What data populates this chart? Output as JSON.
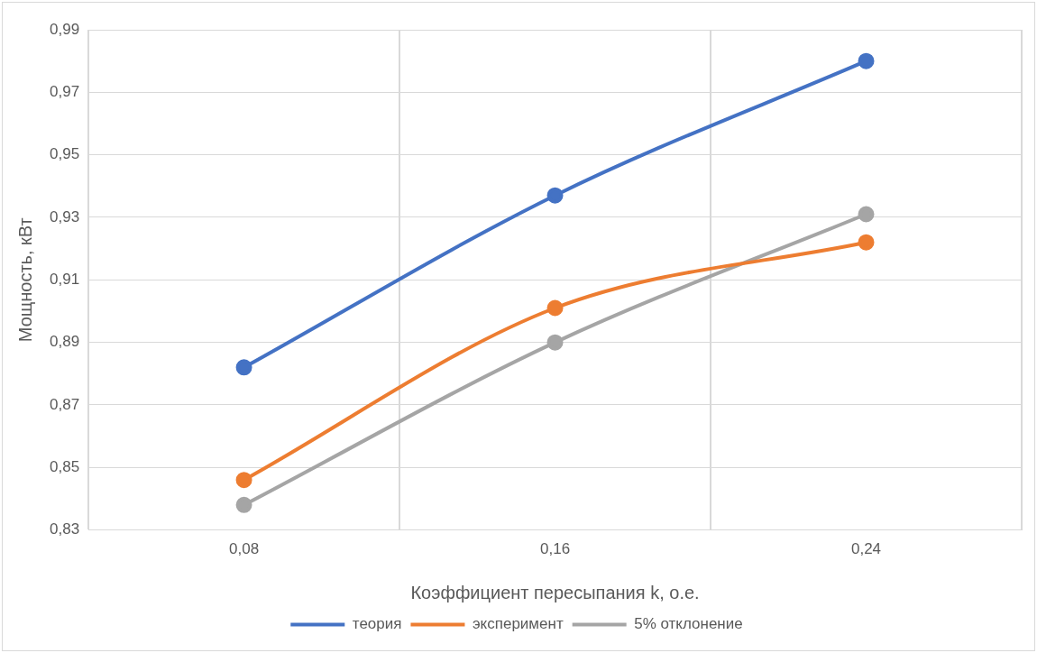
{
  "chart_data": {
    "type": "line",
    "xlabel": "Коэффициент пересыпания k, о.е.",
    "ylabel": "Мощность, кВт",
    "categories": [
      "0,08",
      "0,16",
      "0,24"
    ],
    "series": [
      {
        "name": "теория",
        "color": "#4472c4",
        "values": [
          0.882,
          0.937,
          0.98
        ]
      },
      {
        "name": "эксперимент",
        "color": "#ed7d31",
        "values": [
          0.846,
          0.901,
          0.922
        ]
      },
      {
        "name": "5% отклонение",
        "color": "#a5a5a5",
        "values": [
          0.838,
          0.89,
          0.931
        ]
      }
    ],
    "ylim": [
      0.83,
      0.99
    ],
    "yticks": [
      {
        "value": 0.83,
        "label": "0,83"
      },
      {
        "value": 0.85,
        "label": "0,85"
      },
      {
        "value": 0.87,
        "label": "0,87"
      },
      {
        "value": 0.89,
        "label": "0,89"
      },
      {
        "value": 0.91,
        "label": "0,91"
      },
      {
        "value": 0.93,
        "label": "0,93"
      },
      {
        "value": 0.95,
        "label": "0,95"
      },
      {
        "value": 0.97,
        "label": "0,97"
      },
      {
        "value": 0.99,
        "label": "0,99"
      }
    ],
    "grid": true,
    "legend": "bottom",
    "marker": "circle",
    "line_style": "solid"
  }
}
